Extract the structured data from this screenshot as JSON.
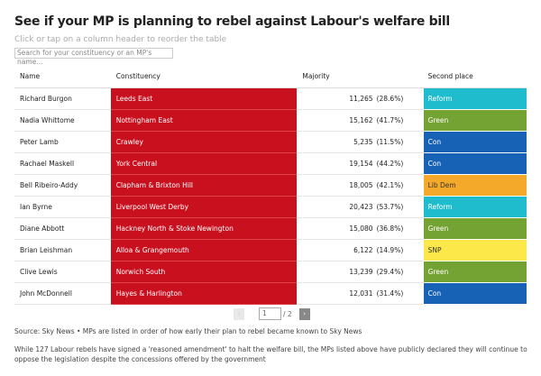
{
  "title": "See if your MP is planning to rebel against Labour's welfare bill",
  "subtitle": "Click or tap on a column header to reorder the table",
  "search_placeholder": "Search for your constituency or an MP's name...",
  "columns": [
    "Name",
    "Constituency",
    "Majority",
    "Second place"
  ],
  "colors": {
    "constituency": "#c8101f",
    "Reform": "#1fbccd",
    "Green": "#74a233",
    "Con": "#1862b5",
    "Lib Dem": "#f4a92a",
    "SNP": "#fde84a"
  },
  "rows": [
    {
      "name": "Richard Burgon",
      "constituency": "Leeds East",
      "majority": "11,265",
      "pct": "(28.6%)",
      "second": "Reform"
    },
    {
      "name": "Nadia Whittome",
      "constituency": "Nottingham East",
      "majority": "15,162",
      "pct": "(41.7%)",
      "second": "Green"
    },
    {
      "name": "Peter Lamb",
      "constituency": "Crawley",
      "majority": "5,235",
      "pct": "(11.5%)",
      "second": "Con"
    },
    {
      "name": "Rachael Maskell",
      "constituency": "York Central",
      "majority": "19,154",
      "pct": "(44.2%)",
      "second": "Con"
    },
    {
      "name": "Bell Ribeiro-Addy",
      "constituency": "Clapham & Brixton Hill",
      "majority": "18,005",
      "pct": "(42.1%)",
      "second": "Lib Dem"
    },
    {
      "name": "Ian Byrne",
      "constituency": "Liverpool West Derby",
      "majority": "20,423",
      "pct": "(53.7%)",
      "second": "Reform"
    },
    {
      "name": "Diane Abbott",
      "constituency": "Hackney North & Stoke Newington",
      "majority": "15,080",
      "pct": "(36.8%)",
      "second": "Green"
    },
    {
      "name": "Brian Leishman",
      "constituency": "Alloa & Grangemouth",
      "majority": "6,122",
      "pct": "(14.9%)",
      "second": "SNP"
    },
    {
      "name": "Clive Lewis",
      "constituency": "Norwich South",
      "majority": "13,239",
      "pct": "(29.4%)",
      "second": "Green"
    },
    {
      "name": "John McDonnell",
      "constituency": "Hayes & Harlington",
      "majority": "12,031",
      "pct": "(31.4%)",
      "second": "Con"
    }
  ],
  "pager": {
    "prev": "‹",
    "page": "1",
    "total": "/ 2",
    "next": "›"
  },
  "source": "Source: Sky News • MPs are listed in order of how early their plan to rebel became known to Sky News",
  "note": "While 127 Labour rebels have signed a 'reasoned amendment' to halt the welfare bill, the MPs listed above have publicly declared they will continue to oppose the legislation despite the concessions offered by the government"
}
